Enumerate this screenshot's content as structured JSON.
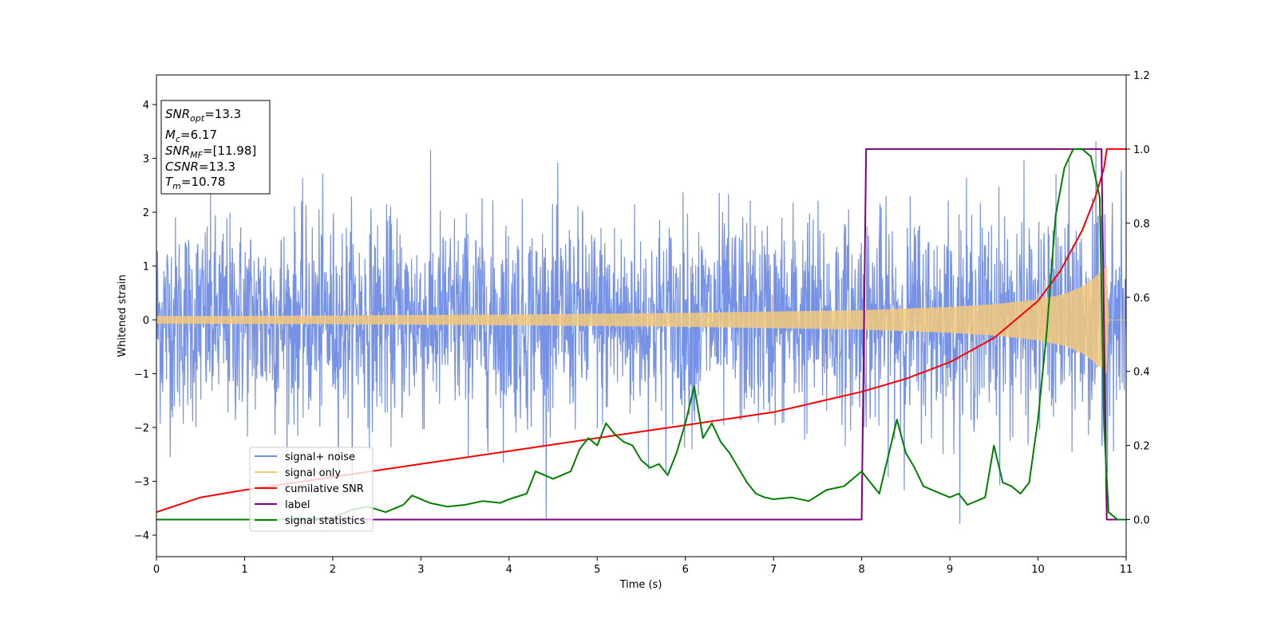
{
  "chart_data": {
    "type": "line",
    "xlabel": "Time (s)",
    "ylabel": "Whitened strain",
    "xlim": [
      0,
      11
    ],
    "ylim": [
      -4.4,
      4.55
    ],
    "ylim_right": [
      -0.1,
      1.2
    ],
    "x_ticks": [
      0,
      1,
      2,
      3,
      4,
      5,
      6,
      7,
      8,
      9,
      10,
      11
    ],
    "y_ticks": [
      -4,
      -3,
      -2,
      -1,
      0,
      1,
      2,
      3,
      4
    ],
    "y_right_ticks": [
      0.0,
      0.2,
      0.4,
      0.6,
      0.8,
      1.0,
      1.2
    ],
    "grid": false,
    "legend_position": "lower-left",
    "info_box": {
      "snr_opt": {
        "symbol": "SNR",
        "subscript": "opt",
        "value": "=13.3"
      },
      "mc": {
        "symbol": "M",
        "subscript": "c",
        "value": "=6.17"
      },
      "snr_mf": {
        "symbol": "SNR",
        "subscript": "MF",
        "value": "=[11.98]"
      },
      "csnr": {
        "symbol": "CSNR",
        "value": "=13.3"
      },
      "tm": {
        "symbol": "T",
        "subscript": "m",
        "value": "=10.78"
      }
    },
    "series": [
      {
        "name": "signal+ noise",
        "color": "#6f8ce6",
        "axis": "left",
        "description_values": {
          "noise_std": 0.95,
          "x_range": [
            0,
            11
          ]
        }
      },
      {
        "name": "signal only",
        "color": "#f5c97a",
        "axis": "left",
        "envelope": {
          "x": [
            0,
            2,
            4,
            6,
            8,
            9,
            9.5,
            10,
            10.3,
            10.5,
            10.65,
            10.78,
            10.8,
            11
          ],
          "amplitude": [
            0.07,
            0.08,
            0.1,
            0.13,
            0.18,
            0.24,
            0.29,
            0.38,
            0.48,
            0.62,
            0.8,
            1.0,
            0.0,
            0.0
          ]
        }
      },
      {
        "name": "cumilative SNR",
        "color": "#ff0000",
        "axis": "right",
        "x": [
          0,
          0.5,
          1,
          2,
          3,
          4,
          5,
          6,
          7,
          8,
          8.5,
          9,
          9.5,
          10,
          10.25,
          10.5,
          10.65,
          10.75,
          10.78,
          10.8,
          11
        ],
        "y": [
          0.02,
          0.06,
          0.08,
          0.115,
          0.15,
          0.185,
          0.22,
          0.255,
          0.29,
          0.345,
          0.38,
          0.425,
          0.49,
          0.59,
          0.67,
          0.78,
          0.87,
          0.95,
          1.0,
          1.0,
          1.0
        ]
      },
      {
        "name": "label",
        "color": "#800080",
        "axis": "right",
        "x": [
          0,
          8.0,
          8.05,
          10.72,
          10.78,
          11
        ],
        "y": [
          0.0,
          0.0,
          1.0,
          1.0,
          0.0,
          0.0
        ]
      },
      {
        "name": "signal statistics",
        "color": "#008000",
        "axis": "right",
        "x": [
          0,
          1,
          1.5,
          2.0,
          2.2,
          2.4,
          2.6,
          2.8,
          2.9,
          3.1,
          3.3,
          3.5,
          3.7,
          3.9,
          4.0,
          4.2,
          4.3,
          4.5,
          4.7,
          4.8,
          4.9,
          5.0,
          5.1,
          5.2,
          5.3,
          5.4,
          5.5,
          5.6,
          5.7,
          5.8,
          5.9,
          6.0,
          6.1,
          6.2,
          6.3,
          6.4,
          6.5,
          6.6,
          6.7,
          6.8,
          6.9,
          7.0,
          7.2,
          7.4,
          7.6,
          7.8,
          7.9,
          8.0,
          8.2,
          8.4,
          8.5,
          8.6,
          8.7,
          8.8,
          9.0,
          9.1,
          9.2,
          9.4,
          9.5,
          9.6,
          9.7,
          9.8,
          9.9,
          10.0,
          10.1,
          10.2,
          10.3,
          10.4,
          10.5,
          10.6,
          10.7,
          10.75,
          10.8,
          10.9,
          11
        ],
        "y": [
          0.0,
          0.0,
          0.0,
          0.005,
          0.025,
          0.035,
          0.02,
          0.04,
          0.065,
          0.045,
          0.035,
          0.04,
          0.05,
          0.045,
          0.055,
          0.07,
          0.13,
          0.11,
          0.13,
          0.19,
          0.22,
          0.2,
          0.26,
          0.23,
          0.21,
          0.2,
          0.16,
          0.14,
          0.15,
          0.12,
          0.18,
          0.26,
          0.36,
          0.22,
          0.26,
          0.21,
          0.18,
          0.14,
          0.1,
          0.07,
          0.06,
          0.055,
          0.06,
          0.05,
          0.08,
          0.09,
          0.11,
          0.13,
          0.07,
          0.27,
          0.18,
          0.14,
          0.09,
          0.08,
          0.06,
          0.07,
          0.04,
          0.06,
          0.2,
          0.1,
          0.09,
          0.07,
          0.1,
          0.27,
          0.51,
          0.82,
          0.95,
          1.0,
          1.0,
          0.98,
          0.87,
          0.25,
          0.02,
          0.0,
          0.0
        ]
      }
    ]
  }
}
